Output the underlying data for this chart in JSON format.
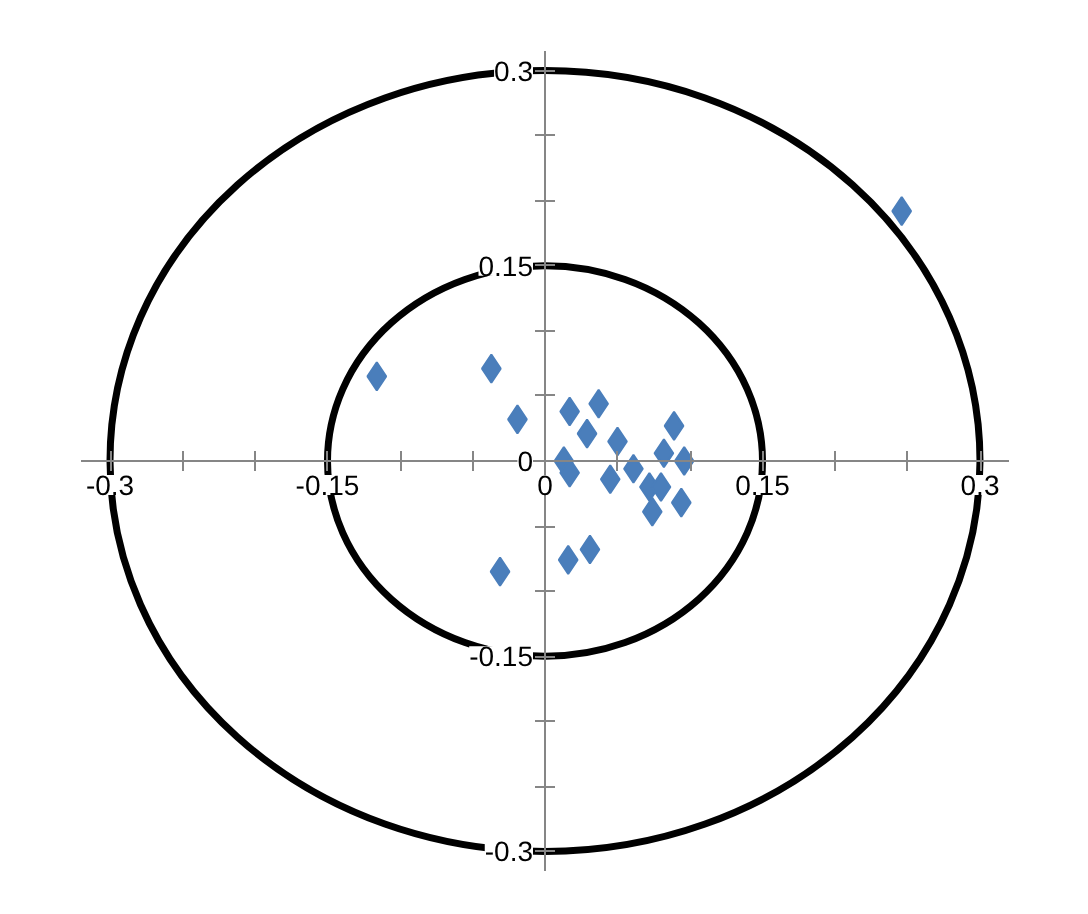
{
  "chart_data": {
    "type": "scatter",
    "marker": "diamond",
    "grid": false,
    "xlim": [
      -0.32,
      0.32
    ],
    "ylim": [
      -0.315,
      0.315
    ],
    "xticks": [
      -0.3,
      {
        "value": -0.25,
        "label": null
      },
      {
        "value": -0.2,
        "label": null
      },
      -0.15,
      {
        "value": -0.1,
        "label": null
      },
      {
        "value": -0.05,
        "label": null
      },
      0,
      {
        "value": 0.05,
        "label": null
      },
      {
        "value": 0.1,
        "label": null
      },
      0.15,
      {
        "value": 0.2,
        "label": null
      },
      {
        "value": 0.25,
        "label": null
      },
      0.3
    ],
    "yticks": [
      -0.3,
      {
        "value": -0.25,
        "label": null
      },
      {
        "value": -0.2,
        "label": null
      },
      -0.15,
      {
        "value": -0.1,
        "label": null
      },
      {
        "value": -0.05,
        "label": null
      },
      0,
      {
        "value": 0.05,
        "label": null
      },
      {
        "value": 0.1,
        "label": null
      },
      0.15,
      {
        "value": 0.2,
        "label": null
      },
      {
        "value": 0.25,
        "label": null
      },
      0.3
    ],
    "series": [
      {
        "color": "#4a7ebb",
        "x": [
          0.246,
          -0.116,
          -0.037,
          -0.019,
          -0.031,
          0.017,
          0.037,
          0.029,
          0.05,
          0.089,
          0.013,
          0.017,
          0.045,
          0.061,
          0.072,
          0.08,
          0.074,
          0.082,
          0.096,
          0.094,
          0.016,
          0.031
        ],
        "values": [
          0.192,
          0.065,
          0.071,
          0.032,
          -0.085,
          0.038,
          0.044,
          0.021,
          0.015,
          0.027,
          0,
          -0.009,
          -0.014,
          -0.006,
          -0.02,
          -0.02,
          -0.039,
          0.006,
          0,
          -0.032,
          -0.076,
          -0.068
        ]
      }
    ]
  }
}
